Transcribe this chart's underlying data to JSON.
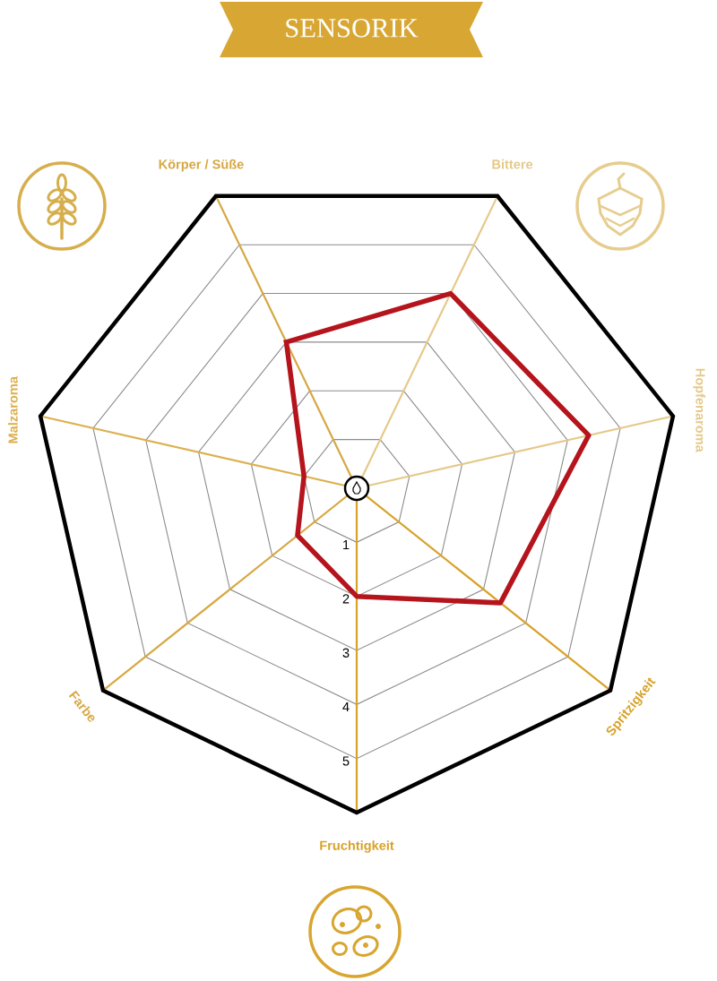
{
  "chart_data": {
    "type": "radar",
    "title": "SENSORIK",
    "categories": [
      "Körper / Süße",
      "Bittere",
      "Hopfenaroma",
      "Spritzigkeit",
      "Fruchtigkeit",
      "Farbe",
      "Malzaroma"
    ],
    "colors": [
      "#d5a843",
      "#e5c98a",
      "#e5c98a",
      "#d7a22a",
      "#d7a22a",
      "#d7a843",
      "#dcb04e"
    ],
    "series": [
      {
        "color": "#b5141c",
        "values": [
          3,
          4,
          4.4,
          3.4,
          2,
          1.4,
          1
        ]
      }
    ],
    "ylim": [
      0,
      6
    ],
    "yticks": [
      1,
      2,
      3,
      4,
      5
    ],
    "grid": true
  }
}
